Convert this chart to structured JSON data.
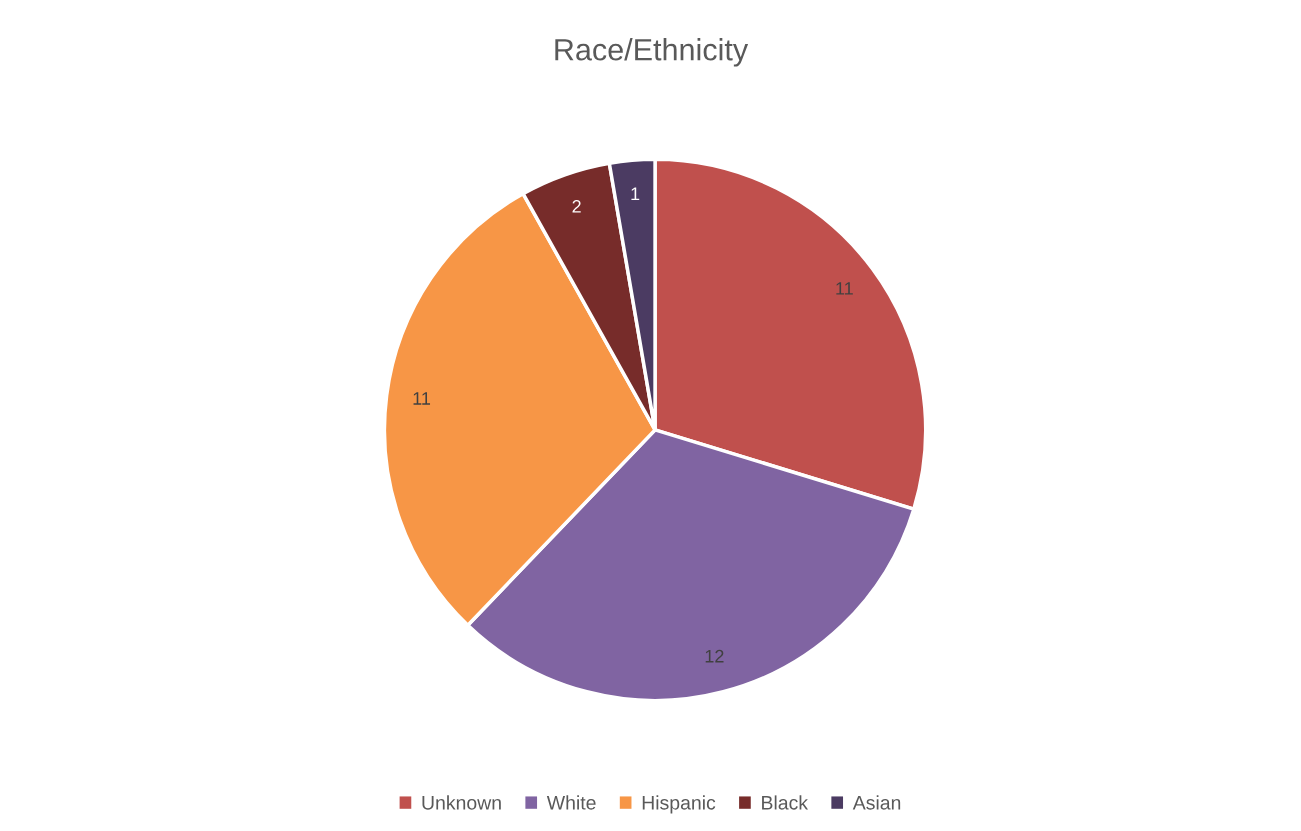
{
  "chart_data": {
    "type": "pie",
    "title": "Race/Ethnicity",
    "categories": [
      "Unknown",
      "White",
      "Hispanic",
      "Black",
      "Asian"
    ],
    "values": [
      11,
      12,
      11,
      2,
      1
    ],
    "colors": [
      "#c0504d",
      "#8064a2",
      "#f79646",
      "#772c2a",
      "#4b3b62"
    ],
    "data_labels": true,
    "legend": "bottom"
  }
}
